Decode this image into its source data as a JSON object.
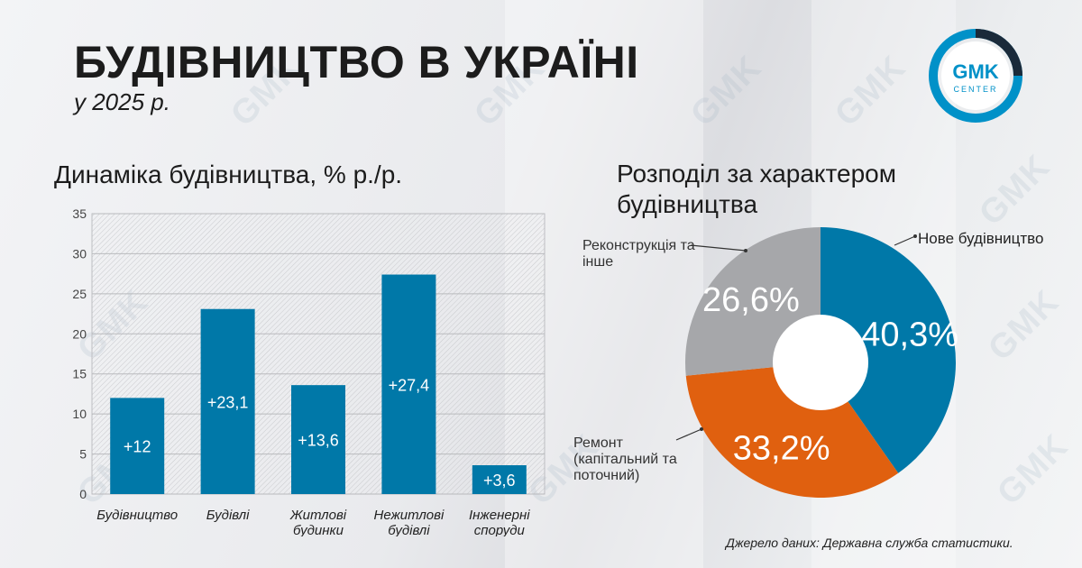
{
  "header": {
    "title": "БУДІВНИЦТВО В УКРАЇНІ",
    "subtitle": "у 2025 р."
  },
  "logo": {
    "line1": "GMK",
    "line2": "CENTER",
    "accent": "#0091c8"
  },
  "watermark": "GMK",
  "bar_section": {
    "title": "Динаміка будівництва, % р./р."
  },
  "pie_section": {
    "title": "Розподіл за характером будівництва"
  },
  "source": "Джерело даних: Державна служба статистики.",
  "chart_data": [
    {
      "type": "bar",
      "title": "Динаміка будівництва, % р./р.",
      "categories": [
        "Будівництво",
        "Будівлі",
        "Житлові будинки",
        "Нежитлові будівлі",
        "Інженерні споруди"
      ],
      "category_lines": [
        [
          "Будівництво"
        ],
        [
          "Будівлі"
        ],
        [
          "Житлові",
          "будинки"
        ],
        [
          "Нежитлові",
          "будівлі"
        ],
        [
          "Інженерні",
          "споруди"
        ]
      ],
      "values": [
        12,
        23.1,
        13.6,
        27.4,
        3.6
      ],
      "data_labels": [
        "+12",
        "+23,1",
        "+13,6",
        "+27,4",
        "+3,6"
      ],
      "ylim": [
        0,
        35
      ],
      "yticks": [
        0,
        5,
        10,
        15,
        20,
        25,
        30,
        35
      ],
      "grid": true,
      "color": "#0078a8"
    },
    {
      "type": "pie",
      "title": "Розподіл за характером будівництва",
      "slices": [
        {
          "label": "Нове будівництво",
          "value": 40.3,
          "display": "40,3%",
          "color": "#0078a8"
        },
        {
          "label": "Ремонт (капітальний та поточний)",
          "value": 33.2,
          "display": "33,2%",
          "color": "#e0600f"
        },
        {
          "label": "Реконструкція та інше",
          "value": 26.6,
          "display": "26,6%",
          "color": "#a6a7aa"
        }
      ]
    }
  ]
}
